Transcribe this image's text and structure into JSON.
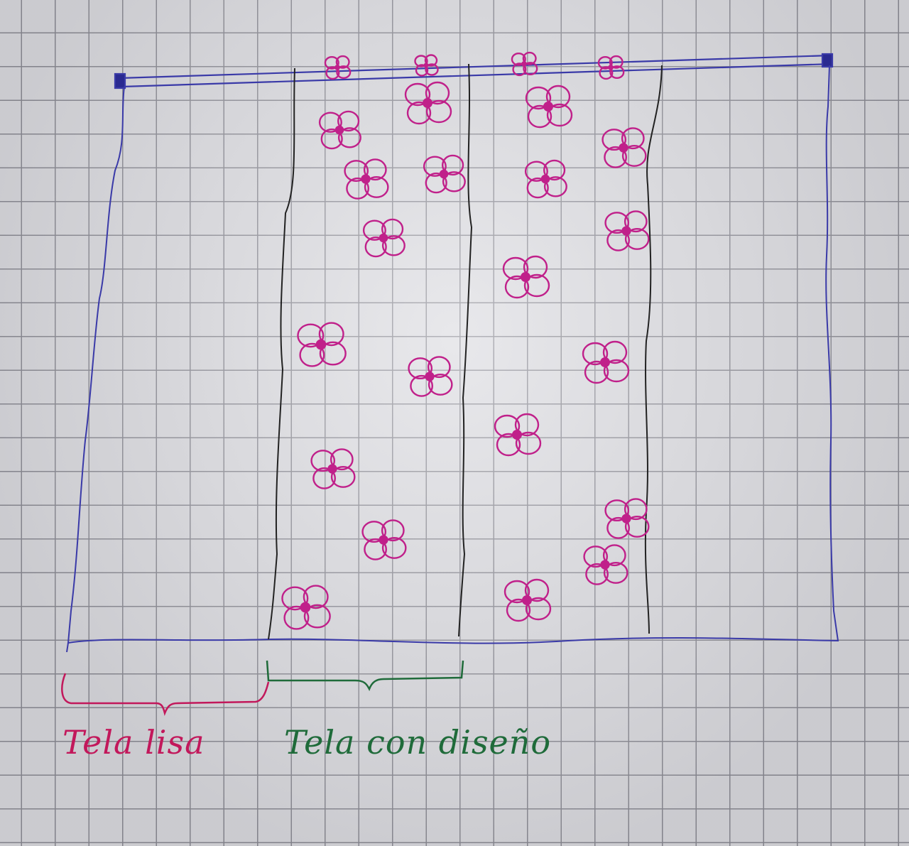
{
  "labels": {
    "plain": {
      "text": "Tela lisa",
      "color": "#c2185b"
    },
    "pattern": {
      "text": "Tela con diseño",
      "color": "#1f6b3a"
    }
  },
  "colors": {
    "pen_blue": "#3a3aa8",
    "pen_black": "#222222",
    "flower": "#c0208a",
    "bracket_plain": "#c2185b",
    "bracket_pattern": "#1f6b3a"
  },
  "icons": {
    "rod": "curtain-rod-icon",
    "flower": "flower-icon"
  }
}
